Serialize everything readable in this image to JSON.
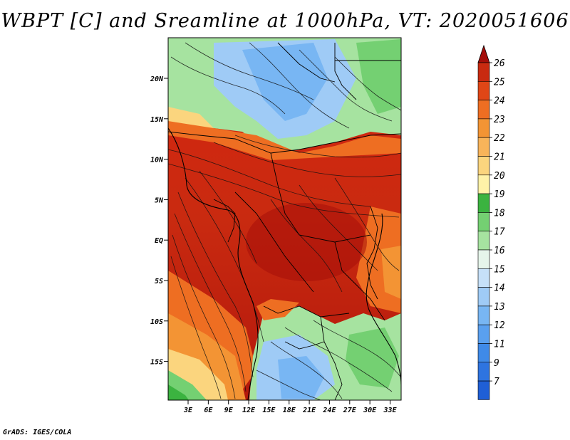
{
  "title": "WBPT [C] and Sreamline at 1000hPa, VT: 2020051606",
  "credit": "GrADS: IGES/COLA",
  "map": {
    "lat_labels": [
      "20N",
      "15N",
      "10N",
      "5N",
      "EQ",
      "5S",
      "10S",
      "15S"
    ],
    "lon_labels": [
      "3E",
      "6E",
      "9E",
      "12E",
      "15E",
      "18E",
      "21E",
      "24E",
      "27E",
      "30E",
      "33E"
    ],
    "lon_range": [
      0,
      35
    ],
    "lat_range": [
      -20,
      24.5
    ]
  },
  "colorbar": {
    "labels": [
      "7",
      "9",
      "11",
      "12",
      "13",
      "14",
      "15",
      "16",
      "17",
      "18",
      "19",
      "20",
      "21",
      "22",
      "23",
      "24",
      "25",
      "26"
    ],
    "colors": [
      "#1f5fd6",
      "#2e74e0",
      "#3f8ae8",
      "#5aa0ef",
      "#78b6f3",
      "#9fcbf6",
      "#c6e0f8",
      "#e6f5ea",
      "#a6e3a0",
      "#74d072",
      "#3bb340",
      "#fff2a8",
      "#fbd57e",
      "#f8b45a",
      "#f39434",
      "#ee6e22",
      "#e04616",
      "#c92a10",
      "#a50e0a"
    ]
  },
  "icons": {
    "top_arrow": "triangle-up-icon",
    "bottom_arrow": "triangle-down-icon"
  }
}
